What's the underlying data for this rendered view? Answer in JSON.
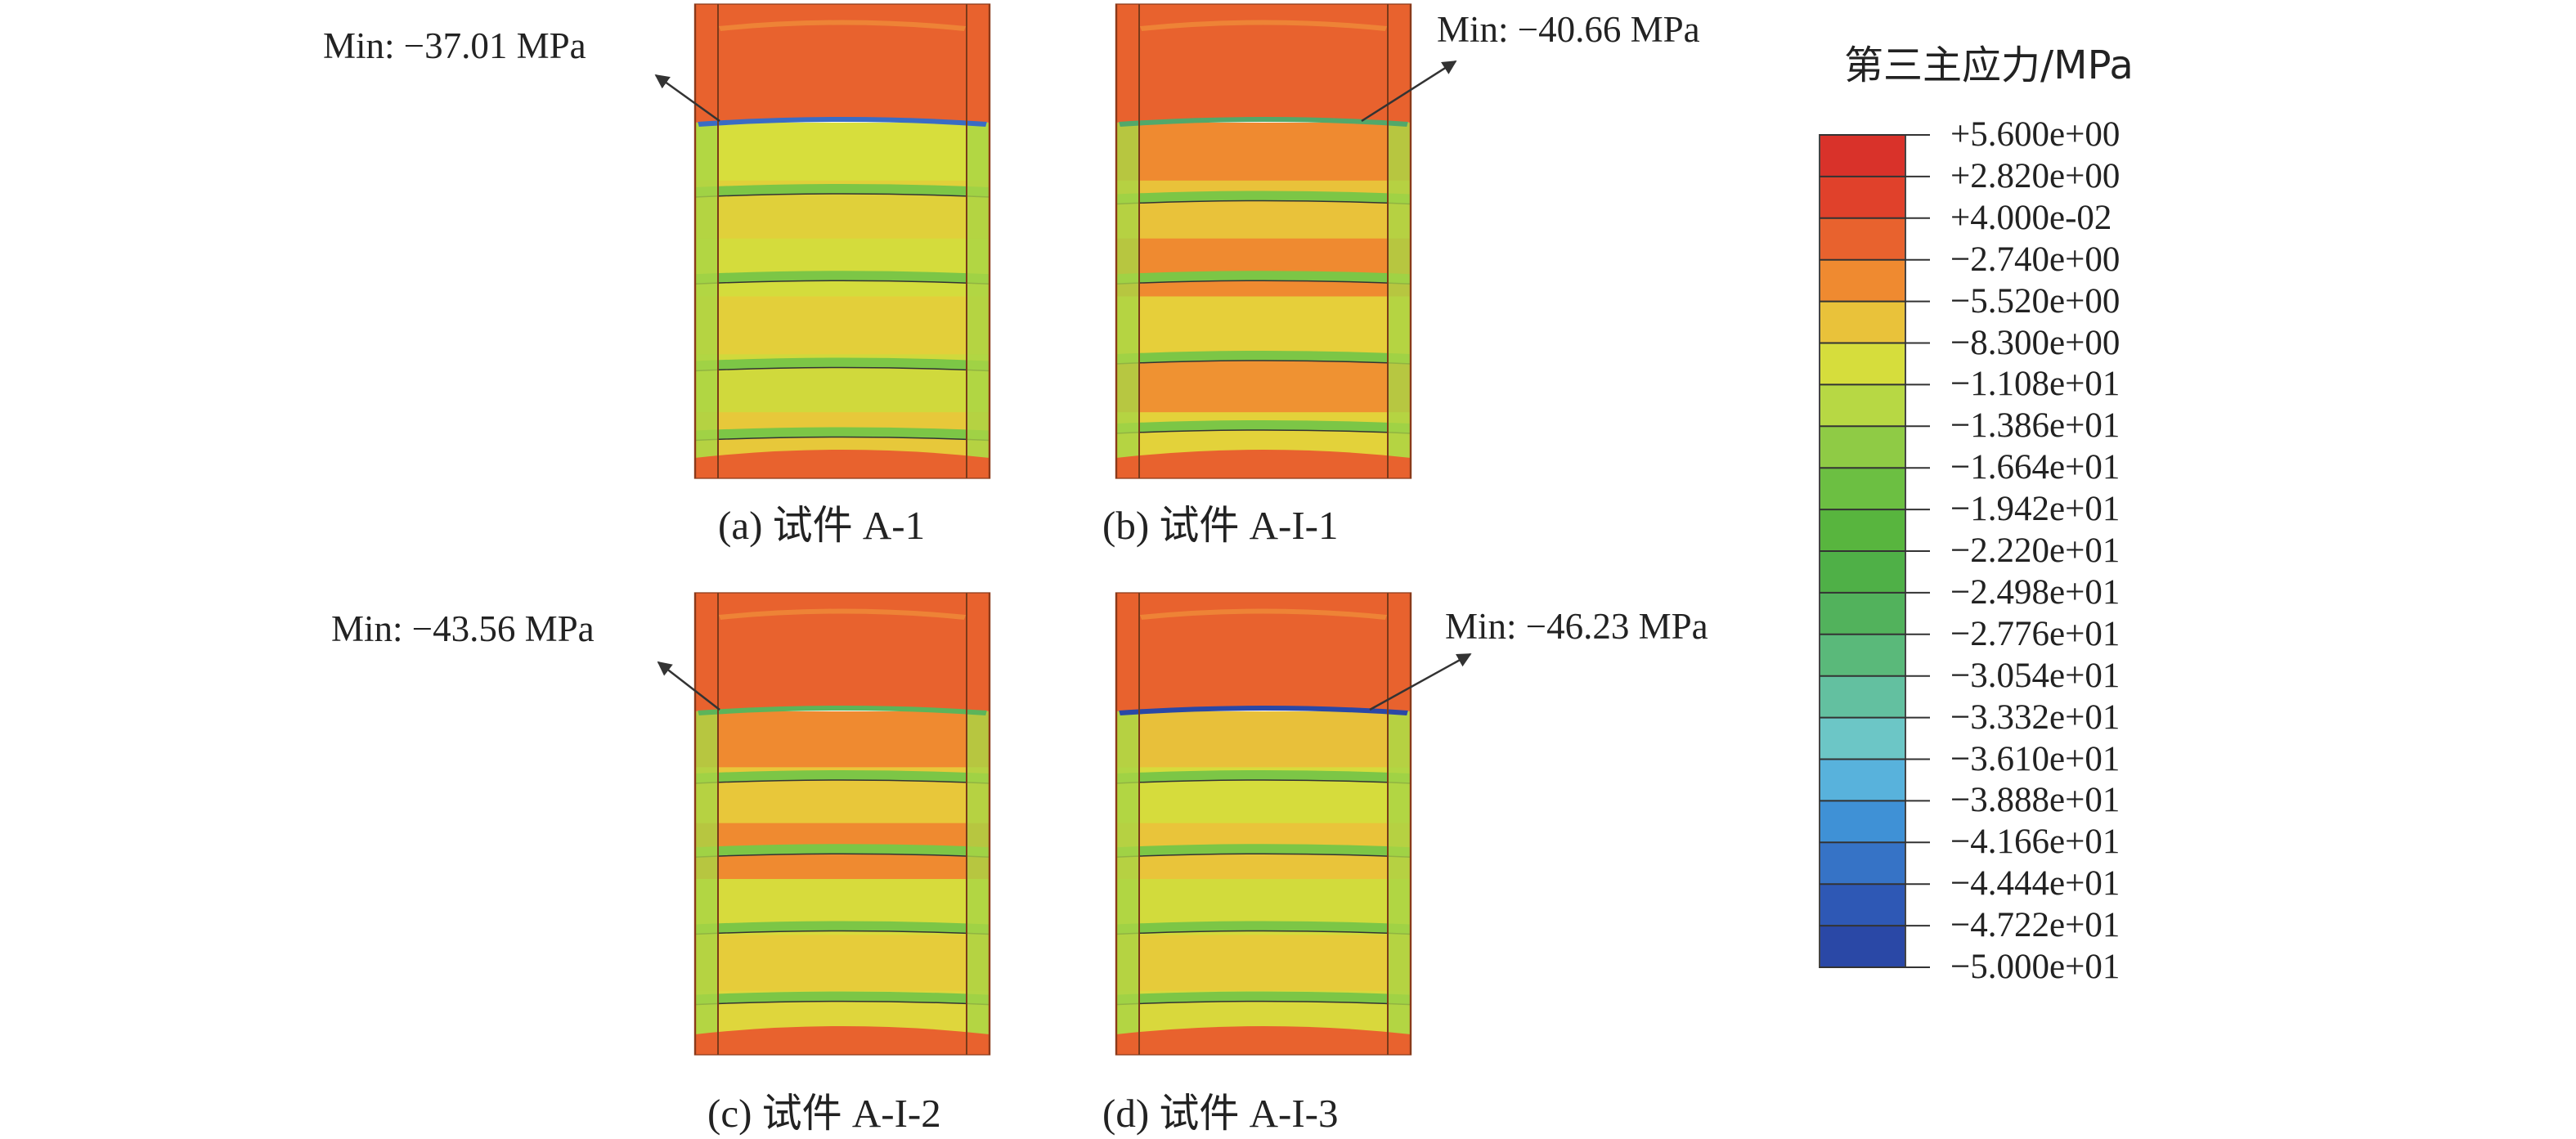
{
  "figure": {
    "panels": [
      {
        "id": "a",
        "caption": "(a) 试件 A-1",
        "min_label": "Min: −37.01 MPa",
        "min_value_mpa": -37.01
      },
      {
        "id": "b",
        "caption": "(b) 试件 A-I-1",
        "min_label": "Min: −40.66 MPa",
        "min_value_mpa": -40.66
      },
      {
        "id": "c",
        "caption": "(c) 试件 A-I-2",
        "min_label": "Min: −43.56 MPa",
        "min_value_mpa": -43.56
      },
      {
        "id": "d",
        "caption": "(d) 试件 A-I-3",
        "min_label": "Min: −46.23 MPa",
        "min_value_mpa": -46.23
      }
    ]
  },
  "legend": {
    "title": "第三主应力/MPa",
    "ticks": [
      "+5.600e+00",
      "+2.820e+00",
      "+4.000e-02",
      "−2.740e+00",
      "−5.520e+00",
      "−8.300e+00",
      "−1.108e+01",
      "−1.386e+01",
      "−1.664e+01",
      "−1.942e+01",
      "−2.220e+01",
      "−2.498e+01",
      "−2.776e+01",
      "−3.054e+01",
      "−3.332e+01",
      "−3.610e+01",
      "−3.888e+01",
      "−4.166e+01",
      "−4.444e+01",
      "−4.722e+01",
      "−5.000e+01"
    ],
    "band_colors": [
      "#d9322a",
      "#e0412b",
      "#e8622e",
      "#ef8a30",
      "#e9c23a",
      "#d6dd3c",
      "#b7d844",
      "#8fcb45",
      "#6cbf42",
      "#58b53e",
      "#4fb047",
      "#52b25c",
      "#5ab97a",
      "#63c0a0",
      "#6cc6c6",
      "#58b2dc",
      "#3f91d6",
      "#3673c6",
      "#2e58b5",
      "#2a48a6"
    ]
  },
  "colors": {
    "cap": "#e8622e",
    "band_orange": "#ef8a30",
    "band_yellow": "#e9d23c",
    "band_green": "#7cc646",
    "edge_dark": "#333333",
    "min_blue": "#2a48a6"
  }
}
